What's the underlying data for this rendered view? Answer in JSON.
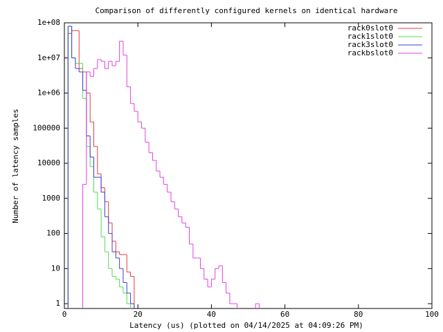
{
  "chart_data": {
    "type": "step",
    "title": "Comparison of differently configured kernels on identical hardware",
    "x_label": "Latency (us) (plotted on 04/14/2025 at 04:09:26 PM)",
    "y_label": "Number of latency samples",
    "log_y": true,
    "legend": "top-right",
    "xlim": [
      0,
      100
    ],
    "xticks": [
      0,
      20,
      40,
      60,
      80,
      100
    ],
    "ylim": [
      0.73,
      100000000
    ],
    "yticks": [
      {
        "value": 1,
        "label": "1"
      },
      10,
      100,
      1000,
      10000,
      100000,
      {
        "value": 1000000,
        "label": "1e+06"
      },
      {
        "value": 10000000,
        "label": "1e+07"
      },
      {
        "value": 100000000,
        "label": "1e+08"
      }
    ],
    "x": [
      1,
      2,
      3,
      4,
      5,
      6,
      7,
      8,
      9,
      10,
      11,
      12,
      13,
      14,
      15,
      16,
      17,
      18,
      19,
      20,
      21,
      22,
      23,
      24,
      25,
      26,
      27,
      28,
      29,
      30,
      31,
      32,
      33,
      34,
      35,
      36,
      37,
      38,
      39,
      40,
      41,
      42,
      43,
      44,
      45,
      46,
      47,
      48,
      49,
      50,
      51,
      52,
      53
    ],
    "series": [
      {
        "name": "rack0slot0",
        "color": "#e03c3c",
        "values": [
          50000000,
          60000000,
          60000000,
          5000000,
          4000000,
          1000000,
          150000,
          30000,
          5000,
          2000,
          800,
          200,
          60,
          30,
          25,
          25,
          8,
          6,
          null,
          null,
          null,
          null,
          null,
          null,
          null,
          null,
          null,
          null,
          null,
          null,
          null,
          null,
          null,
          null,
          null,
          null,
          null,
          null,
          null,
          null,
          null,
          null,
          null,
          null,
          null,
          null,
          null,
          null,
          null,
          null,
          null,
          null,
          null
        ]
      },
      {
        "name": "rack1slot0",
        "color": "#4fdc4f",
        "values": [
          80000000,
          10000000,
          7000000,
          7000000,
          700000,
          30000,
          8000,
          1500,
          500,
          80,
          30,
          10,
          6,
          5,
          3,
          2,
          1,
          null,
          null,
          null,
          null,
          null,
          null,
          null,
          null,
          null,
          null,
          null,
          null,
          null,
          null,
          null,
          null,
          null,
          null,
          null,
          null,
          null,
          null,
          null,
          null,
          null,
          null,
          null,
          null,
          null,
          null,
          null,
          null,
          null,
          null,
          null,
          null
        ]
      },
      {
        "name": "rack3slot0",
        "color": "#3c3cd0",
        "values": [
          80000000,
          10000000,
          5000000,
          4000000,
          1200000,
          60000,
          15000,
          4000,
          4000,
          1500,
          300,
          100,
          30,
          20,
          10,
          4,
          2,
          1,
          null,
          null,
          null,
          null,
          null,
          null,
          null,
          null,
          null,
          null,
          null,
          null,
          null,
          null,
          null,
          null,
          null,
          null,
          null,
          null,
          null,
          null,
          null,
          null,
          null,
          null,
          null,
          null,
          null,
          null,
          null,
          null,
          null,
          null,
          null
        ]
      },
      {
        "name": "rackbslot0",
        "color": "#e040e0",
        "values": [
          null,
          null,
          null,
          null,
          2500,
          4000000,
          3000000,
          5000000,
          9000000,
          8000000,
          5000000,
          8000000,
          6000000,
          8000000,
          30000000,
          12000000,
          1500000,
          500000,
          300000,
          150000,
          100000,
          40000,
          20000,
          12000,
          6000,
          4000,
          2500,
          1500,
          800,
          500,
          300,
          200,
          150,
          50,
          20,
          20,
          10,
          5,
          3,
          5,
          10,
          12,
          4,
          2,
          1,
          1,
          null,
          null,
          null,
          null,
          null,
          1,
          null
        ]
      }
    ]
  }
}
